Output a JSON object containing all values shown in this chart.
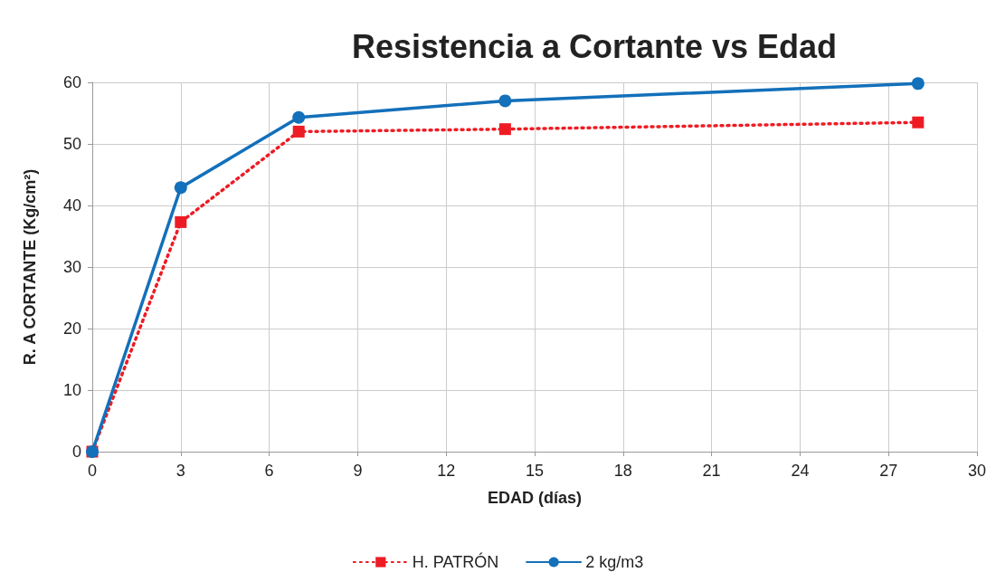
{
  "chart_data": {
    "type": "line",
    "title": "Resistencia a Cortante vs Edad",
    "xlabel": "EDAD (días)",
    "ylabel": "R. A CORTANTE (Kg/cm²)",
    "x": [
      0,
      3,
      7,
      14,
      28
    ],
    "series": [
      {
        "name": "H. PATRÓN",
        "color": "#ed1c24",
        "values": [
          0,
          37.3,
          52.0,
          52.4,
          53.5
        ],
        "marker": "square",
        "line_style": "dotted"
      },
      {
        "name": "2 kg/m3",
        "color": "#1370ba",
        "values": [
          0,
          42.9,
          54.3,
          57.0,
          59.8
        ],
        "marker": "circle",
        "line_style": "solid"
      }
    ],
    "xlim": [
      0,
      30
    ],
    "xticks": [
      0,
      3,
      6,
      9,
      12,
      15,
      18,
      21,
      24,
      27,
      30
    ],
    "ylim": [
      0,
      60
    ],
    "yticks": [
      0,
      10,
      20,
      30,
      40,
      50,
      60
    ],
    "grid": true,
    "legend": "bottom"
  }
}
